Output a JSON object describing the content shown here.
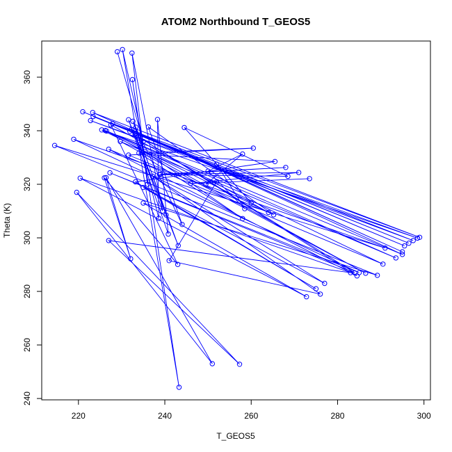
{
  "chart_data": {
    "type": "line",
    "title": "ATOM2 Northbound T_GEOS5",
    "xlabel": "T_GEOS5",
    "ylabel": "Theta (K)",
    "xlim": [
      211.5,
      301.5
    ],
    "ylim": [
      239.5,
      373.5
    ],
    "xticks": [
      220,
      240,
      260,
      280,
      300
    ],
    "yticks": [
      240,
      260,
      280,
      300,
      320,
      340,
      360
    ],
    "grid": false,
    "legend": "none",
    "color": "#0000ff",
    "marker": "open-circle",
    "series": [
      {
        "x": [
          229.0,
          235.0,
          230.2,
          243.3,
          232.5,
          236.0,
          232.4,
          239.5,
          233.1,
          240.3,
          233.3,
          238.6,
          238.3,
          240.8,
          231.6,
          243.1,
          232.6,
          244.0,
          236.2,
          265.2,
          225.4,
          298.5,
          222.8,
          297.5,
          223.4,
          296.5,
          221.0,
          295.5,
          227.9,
          299.0,
          223.3,
          295.0,
          232.3,
          295.0,
          226.2,
          286.5,
          229.7,
          293.5,
          226.5,
          290.5,
          227.0,
          284.5,
          231.9,
          284.0,
          227.3,
          285.0,
          218.9,
          291.0,
          214.5,
          289.2,
          235.0,
          272.8,
          220.4,
          283.0,
          227.0,
          257.3,
          219.6,
          251.0,
          226.4,
          232.1,
          226.0,
          243.0,
          227.5,
          264.0,
          231.6,
          260.5,
          234.0,
          258.0,
          236.5,
          265.5,
          233.2,
          275.0,
          235.0,
          277.0,
          237.2,
          276.0,
          241.0,
          252.0,
          249.5,
          258.0,
          250.0,
          258.5,
          252.0,
          260.0,
          244.5,
          268.5,
          238.8,
          268.0,
          239.0,
          271.0,
          246.0,
          273.5
        ],
        "y": [
          369.5,
          336.0,
          370.3,
          244.2,
          359.1,
          320.0,
          369.0,
          310.0,
          338.7,
          308.5,
          341.3,
          307.3,
          344.2,
          301.4,
          344.1,
          297.1,
          343.5,
          305.0,
          341.4,
          308.6,
          340.3,
          299.9,
          343.8,
          299.0,
          345.3,
          298.0,
          347.1,
          297.0,
          342.7,
          300.2,
          346.8,
          294.8,
          340.5,
          293.8,
          340.1,
          286.8,
          336.0,
          292.5,
          339.9,
          290.2,
          333.1,
          285.8,
          339.8,
          286.9,
          324.3,
          287.0,
          336.8,
          296.2,
          334.5,
          286.0,
          313.0,
          278.0,
          322.3,
          287.0,
          299.0,
          252.8,
          317.0,
          253.0,
          322.5,
          292.2,
          322.4,
          290.1,
          342.2,
          309.5,
          330.9,
          333.5,
          331.7,
          307.2,
          331.0,
          328.5,
          320.9,
          281.0,
          318.8,
          283.0,
          323.0,
          279.0,
          291.5,
          321.0,
          320.0,
          331.3,
          324.9,
          310.9,
          327.5,
          313.1,
          341.2,
          323.0,
          323.6,
          326.3,
          323.8,
          324.4,
          320.3,
          322.1
        ]
      }
    ]
  }
}
